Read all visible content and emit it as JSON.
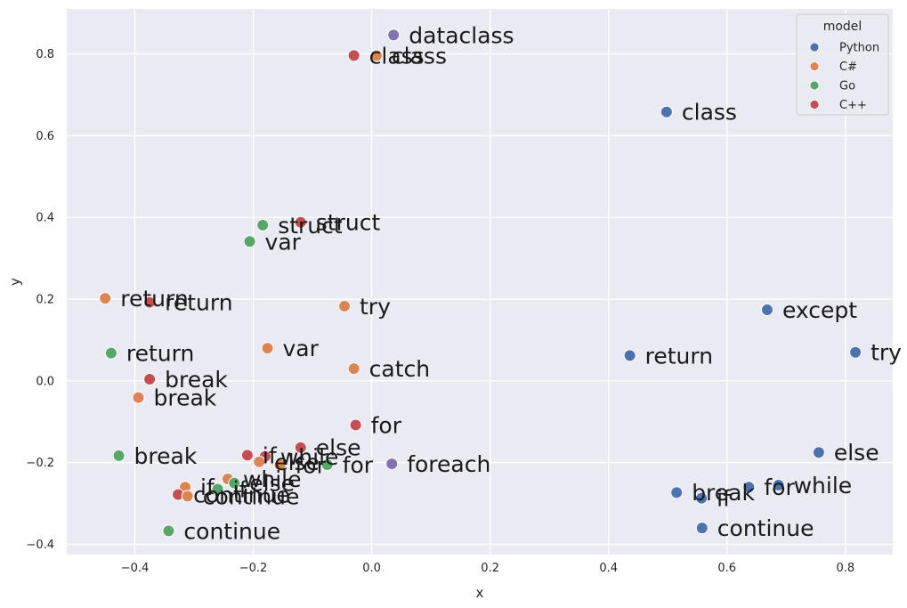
{
  "chart_data": {
    "type": "scatter",
    "xlabel": "x",
    "ylabel": "y",
    "xlim": [
      -0.515,
      0.88
    ],
    "ylim": [
      -0.425,
      0.91
    ],
    "xticks": [
      -0.4,
      -0.2,
      0.0,
      0.2,
      0.4,
      0.6,
      0.8
    ],
    "xtick_labels": [
      "−0.4",
      "−0.2",
      "0.0",
      "0.2",
      "0.4",
      "0.6",
      "0.8"
    ],
    "yticks": [
      -0.4,
      -0.2,
      0.0,
      0.2,
      0.4,
      0.6,
      0.8
    ],
    "ytick_labels": [
      "−0.4",
      "−0.2",
      "0.0",
      "0.2",
      "0.4",
      "0.6",
      "0.8"
    ],
    "grid": true,
    "legend": {
      "title": "model",
      "placement": "top-right",
      "entries": [
        {
          "name": "Python",
          "color": "#4c72b0"
        },
        {
          "name": "C#",
          "color": "#dd8452"
        },
        {
          "name": "Go",
          "color": "#55a868"
        },
        {
          "name": "C++",
          "color": "#c44e52"
        }
      ]
    },
    "extra_colors": {
      "purple": "#8172b3"
    },
    "points": [
      {
        "label": "dataclass",
        "x": 0.037,
        "y": 0.846,
        "color": "#8172b3"
      },
      {
        "label": "class",
        "x": 0.008,
        "y": 0.796,
        "color": "#dd8452"
      },
      {
        "label": "class",
        "x": -0.03,
        "y": 0.796,
        "color": "#c44e52"
      },
      {
        "label": "class",
        "x": 0.498,
        "y": 0.658,
        "color": "#4c72b0"
      },
      {
        "label": "struct",
        "x": -0.184,
        "y": 0.381,
        "color": "#55a868"
      },
      {
        "label": "struct",
        "x": -0.12,
        "y": 0.388,
        "color": "#c44e52"
      },
      {
        "label": "var",
        "x": -0.206,
        "y": 0.341,
        "color": "#55a868"
      },
      {
        "label": "return",
        "x": -0.45,
        "y": 0.202,
        "color": "#dd8452"
      },
      {
        "label": "return",
        "x": -0.375,
        "y": 0.192,
        "color": "#c44e52"
      },
      {
        "label": "try",
        "x": -0.046,
        "y": 0.183,
        "color": "#dd8452"
      },
      {
        "label": "except",
        "x": 0.668,
        "y": 0.174,
        "color": "#4c72b0"
      },
      {
        "label": "var",
        "x": -0.176,
        "y": 0.08,
        "color": "#dd8452"
      },
      {
        "label": "return",
        "x": -0.44,
        "y": 0.068,
        "color": "#55a868"
      },
      {
        "label": "try",
        "x": 0.817,
        "y": 0.07,
        "color": "#4c72b0"
      },
      {
        "label": "return",
        "x": 0.436,
        "y": 0.062,
        "color": "#4c72b0"
      },
      {
        "label": "catch",
        "x": -0.03,
        "y": 0.03,
        "color": "#dd8452"
      },
      {
        "label": "break",
        "x": -0.375,
        "y": 0.004,
        "color": "#c44e52"
      },
      {
        "label": "break",
        "x": -0.394,
        "y": -0.041,
        "color": "#dd8452"
      },
      {
        "label": "for",
        "x": -0.027,
        "y": -0.108,
        "color": "#c44e52"
      },
      {
        "label": "else",
        "x": 0.755,
        "y": -0.175,
        "color": "#4c72b0"
      },
      {
        "label": "else",
        "x": -0.12,
        "y": -0.163,
        "color": "#c44e52"
      },
      {
        "label": "break",
        "x": -0.427,
        "y": -0.183,
        "color": "#55a868"
      },
      {
        "label": "if",
        "x": -0.21,
        "y": -0.182,
        "color": "#c44e52"
      },
      {
        "label": "while",
        "x": -0.18,
        "y": -0.185,
        "color": "#c44e52"
      },
      {
        "label": "else",
        "x": -0.19,
        "y": -0.198,
        "color": "#dd8452"
      },
      {
        "label": "for",
        "x": -0.155,
        "y": -0.206,
        "color": "#dd8452"
      },
      {
        "label": "for",
        "x": -0.075,
        "y": -0.205,
        "color": "#55a868"
      },
      {
        "label": "foreach",
        "x": 0.034,
        "y": -0.203,
        "color": "#8172b3"
      },
      {
        "label": "while",
        "x": -0.243,
        "y": -0.24,
        "color": "#dd8452"
      },
      {
        "label": "while",
        "x": 0.687,
        "y": -0.255,
        "color": "#4c72b0"
      },
      {
        "label": "else",
        "x": -0.232,
        "y": -0.25,
        "color": "#55a868"
      },
      {
        "label": "for",
        "x": 0.637,
        "y": -0.26,
        "color": "#4c72b0"
      },
      {
        "label": "if",
        "x": -0.315,
        "y": -0.26,
        "color": "#dd8452"
      },
      {
        "label": "if",
        "x": -0.26,
        "y": -0.265,
        "color": "#55a868"
      },
      {
        "label": "break",
        "x": 0.515,
        "y": -0.273,
        "color": "#4c72b0"
      },
      {
        "label": "continue",
        "x": -0.327,
        "y": -0.278,
        "color": "#c44e52"
      },
      {
        "label": "continue",
        "x": -0.311,
        "y": -0.282,
        "color": "#dd8452"
      },
      {
        "label": "if",
        "x": 0.557,
        "y": -0.287,
        "color": "#4c72b0"
      },
      {
        "label": "continue",
        "x": 0.558,
        "y": -0.36,
        "color": "#4c72b0"
      },
      {
        "label": "continue",
        "x": -0.343,
        "y": -0.367,
        "color": "#55a868"
      }
    ]
  }
}
